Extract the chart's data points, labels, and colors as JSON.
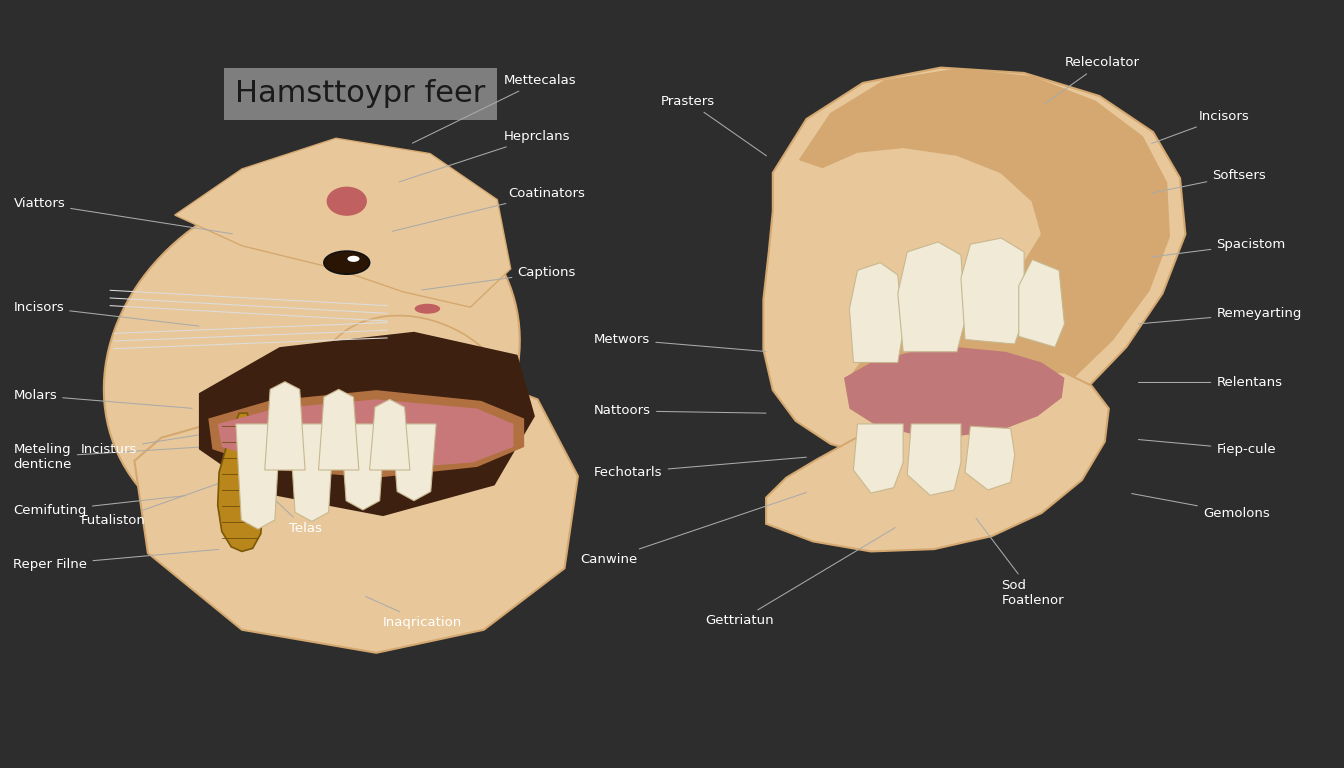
{
  "background_color": "#2d2d2d",
  "title": "Hamsttoypr feer",
  "title_bgcolor": "#8a8a8a",
  "title_color": "#1a1a1a",
  "title_fontsize": 22,
  "label_color": "#ffffff",
  "label_fontsize": 9.5,
  "skin": "#e8c89a",
  "skin_dark": "#d4a870",
  "dark_inner": "#3d2010",
  "pink": "#c06060",
  "white_tooth": "#f0ead6",
  "brown_eye": "#2a1505",
  "annotations": [
    {
      "text": "Viattors",
      "tp": [
        0.01,
        0.735
      ],
      "ap": [
        0.175,
        0.695
      ],
      "ha": "left"
    },
    {
      "text": "Incisors",
      "tp": [
        0.01,
        0.6
      ],
      "ap": [
        0.15,
        0.575
      ],
      "ha": "left"
    },
    {
      "text": "Molars",
      "tp": [
        0.01,
        0.485
      ],
      "ap": [
        0.145,
        0.468
      ],
      "ha": "left"
    },
    {
      "text": "Meteling\ndenticne",
      "tp": [
        0.01,
        0.405
      ],
      "ap": [
        0.15,
        0.418
      ],
      "ha": "left"
    },
    {
      "text": "Cemifuting",
      "tp": [
        0.01,
        0.335
      ],
      "ap": [
        0.14,
        0.355
      ],
      "ha": "left"
    },
    {
      "text": "Reper Filne",
      "tp": [
        0.01,
        0.265
      ],
      "ap": [
        0.165,
        0.285
      ],
      "ha": "left"
    },
    {
      "text": "Mettecalas",
      "tp": [
        0.375,
        0.895
      ],
      "ap": [
        0.305,
        0.812
      ],
      "ha": "left"
    },
    {
      "text": "Heprclans",
      "tp": [
        0.375,
        0.822
      ],
      "ap": [
        0.295,
        0.762
      ],
      "ha": "left"
    },
    {
      "text": "Coatinators",
      "tp": [
        0.378,
        0.748
      ],
      "ap": [
        0.29,
        0.698
      ],
      "ha": "left"
    },
    {
      "text": "Captions",
      "tp": [
        0.385,
        0.645
      ],
      "ap": [
        0.312,
        0.622
      ],
      "ha": "left"
    },
    {
      "text": "Inaqrication",
      "tp": [
        0.285,
        0.19
      ],
      "ap": [
        0.27,
        0.225
      ],
      "ha": "left"
    },
    {
      "text": "Prasters",
      "tp": [
        0.492,
        0.868
      ],
      "ap": [
        0.572,
        0.795
      ],
      "ha": "left"
    },
    {
      "text": "Metwors",
      "tp": [
        0.442,
        0.558
      ],
      "ap": [
        0.572,
        0.542
      ],
      "ha": "left"
    },
    {
      "text": "Nattoors",
      "tp": [
        0.442,
        0.465
      ],
      "ap": [
        0.572,
        0.462
      ],
      "ha": "left"
    },
    {
      "text": "Fechotarls",
      "tp": [
        0.442,
        0.385
      ],
      "ap": [
        0.602,
        0.405
      ],
      "ha": "left"
    },
    {
      "text": "Canwine",
      "tp": [
        0.432,
        0.272
      ],
      "ap": [
        0.602,
        0.36
      ],
      "ha": "left"
    },
    {
      "text": "Gettriatun",
      "tp": [
        0.525,
        0.192
      ],
      "ap": [
        0.668,
        0.315
      ],
      "ha": "left"
    },
    {
      "text": "Relecolator",
      "tp": [
        0.792,
        0.918
      ],
      "ap": [
        0.775,
        0.862
      ],
      "ha": "left"
    },
    {
      "text": "Incisors",
      "tp": [
        0.892,
        0.848
      ],
      "ap": [
        0.855,
        0.812
      ],
      "ha": "left"
    },
    {
      "text": "Softsers",
      "tp": [
        0.902,
        0.772
      ],
      "ap": [
        0.855,
        0.748
      ],
      "ha": "left"
    },
    {
      "text": "Spacistom",
      "tp": [
        0.905,
        0.682
      ],
      "ap": [
        0.855,
        0.665
      ],
      "ha": "left"
    },
    {
      "text": "Remeyarting",
      "tp": [
        0.905,
        0.592
      ],
      "ap": [
        0.845,
        0.578
      ],
      "ha": "left"
    },
    {
      "text": "Relentans",
      "tp": [
        0.905,
        0.502
      ],
      "ap": [
        0.845,
        0.502
      ],
      "ha": "left"
    },
    {
      "text": "Fiep-cule",
      "tp": [
        0.905,
        0.415
      ],
      "ap": [
        0.845,
        0.428
      ],
      "ha": "left"
    },
    {
      "text": "Gemolons",
      "tp": [
        0.895,
        0.332
      ],
      "ap": [
        0.84,
        0.358
      ],
      "ha": "left"
    },
    {
      "text": "Sod\nFoatlenor",
      "tp": [
        0.745,
        0.228
      ],
      "ap": [
        0.725,
        0.328
      ],
      "ha": "left"
    },
    {
      "text": "Incisturs",
      "tp": [
        0.06,
        0.415
      ],
      "ap": [
        0.17,
        0.44
      ],
      "ha": "left"
    },
    {
      "text": "Futaliston",
      "tp": [
        0.06,
        0.322
      ],
      "ap": [
        0.17,
        0.375
      ],
      "ha": "left"
    },
    {
      "text": "Telas",
      "tp": [
        0.215,
        0.312
      ],
      "ap": [
        0.193,
        0.368
      ],
      "ha": "left"
    }
  ]
}
